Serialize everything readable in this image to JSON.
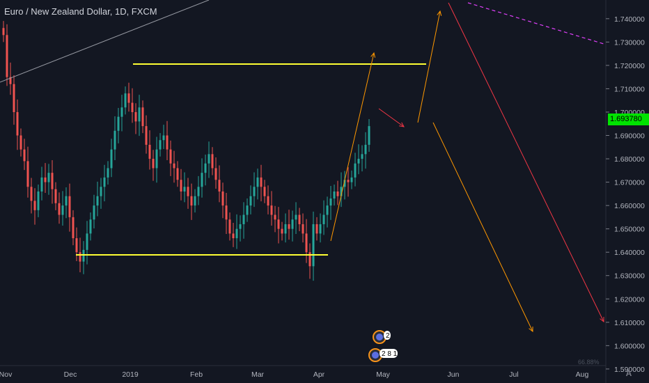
{
  "header": {
    "title": "Euro / New Zealand Dollar, 1D, FXCM"
  },
  "last_price": "1.693780",
  "colors": {
    "background": "#131722",
    "up": "#26a69a",
    "down": "#ef5350",
    "support_resistance": "#ffff33",
    "orange_arrow": "#ff9800",
    "red_arrow": "#f23645",
    "magenta_dash": "#e040fb",
    "price_tag": "#00e300"
  },
  "chart_data": {
    "type": "candlestick",
    "symbol": "EURNZD",
    "timeframe": "1D",
    "ylim": [
      1.584,
      1.748
    ],
    "y_ticks": [
      "1.740000",
      "1.730000",
      "1.720000",
      "1.710000",
      "1.700000",
      "1.690000",
      "1.680000",
      "1.670000",
      "1.660000",
      "1.650000",
      "1.640000",
      "1.630000",
      "1.620000",
      "1.610000",
      "1.600000",
      "1.590000"
    ],
    "x_ticks": [
      "Nov",
      "Dec",
      "2019",
      "Feb",
      "Mar",
      "Apr",
      "May",
      "Jun",
      "Jul",
      "Aug"
    ],
    "closes": [
      1.733,
      1.715,
      1.712,
      1.7,
      1.69,
      1.684,
      1.679,
      1.668,
      1.662,
      1.658,
      1.666,
      1.672,
      1.67,
      1.674,
      1.667,
      1.661,
      1.656,
      1.66,
      1.664,
      1.655,
      1.646,
      1.64,
      1.636,
      1.641,
      1.648,
      1.654,
      1.66,
      1.664,
      1.668,
      1.672,
      1.676,
      1.684,
      1.692,
      1.698,
      1.702,
      1.708,
      1.704,
      1.7,
      1.696,
      1.702,
      1.694,
      1.686,
      1.68,
      1.676,
      1.684,
      1.688,
      1.69,
      1.684,
      1.678,
      1.676,
      1.671,
      1.666,
      1.668,
      1.664,
      1.66,
      1.664,
      1.668,
      1.674,
      1.678,
      1.682,
      1.676,
      1.671,
      1.666,
      1.66,
      1.654,
      1.648,
      1.646,
      1.65,
      1.652,
      1.656,
      1.66,
      1.664,
      1.668,
      1.672,
      1.668,
      1.664,
      1.66,
      1.656,
      1.654,
      1.65,
      1.648,
      1.652,
      1.65,
      1.654,
      1.656,
      1.652,
      1.648,
      1.64,
      1.634,
      1.652,
      1.648,
      1.652,
      1.656,
      1.66,
      1.663,
      1.666,
      1.664,
      1.668,
      1.671,
      1.67,
      1.672,
      1.678,
      1.68,
      1.682,
      1.686,
      1.694
    ],
    "annotations": [
      {
        "type": "horizontal_segment",
        "label": "resistance",
        "price": 1.7188
      },
      {
        "type": "horizontal_segment",
        "label": "support",
        "price": 1.6328
      },
      {
        "type": "arrow",
        "color": "orange",
        "from": [
          1.639
        ],
        "to": [
          1.725
        ]
      },
      {
        "type": "arrow",
        "color": "red",
        "from": [
          1.7
        ],
        "to": [
          1.691
        ]
      },
      {
        "type": "arrow",
        "color": "orange",
        "from": [
          1.692
        ],
        "to": [
          1.746
        ]
      },
      {
        "type": "arrow",
        "color": "orange",
        "from": [
          1.693
        ],
        "to": [
          1.6
        ]
      },
      {
        "type": "arrow",
        "color": "red",
        "from": [
          1.746
        ],
        "to": [
          1.602
        ]
      },
      {
        "type": "dashed_line",
        "color": "magenta",
        "from": [
          1.746
        ],
        "to": [
          1.728
        ]
      }
    ],
    "events": [
      {
        "label": "2"
      },
      {
        "label": "2 8 1"
      }
    ],
    "grid": false,
    "legend": "none"
  },
  "footer": {
    "partial_text": "66.88%",
    "logo_text": "A"
  }
}
